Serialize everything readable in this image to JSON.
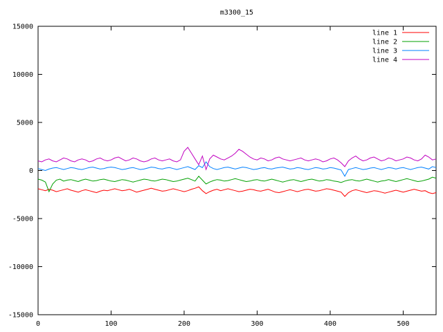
{
  "chart_data": {
    "type": "line",
    "title": "m3300_15",
    "xlabel": "",
    "ylabel": "",
    "xlim": [
      0,
      545
    ],
    "ylim": [
      -15000,
      15000
    ],
    "xticks": [
      0,
      100,
      200,
      300,
      400,
      500
    ],
    "yticks": [
      -15000,
      -10000,
      -5000,
      0,
      5000,
      10000,
      15000
    ],
    "grid": false,
    "legend_position": "top-right",
    "x": [
      0,
      5,
      10,
      15,
      20,
      25,
      30,
      35,
      40,
      45,
      50,
      55,
      60,
      65,
      70,
      75,
      80,
      85,
      90,
      95,
      100,
      105,
      110,
      115,
      120,
      125,
      130,
      135,
      140,
      145,
      150,
      155,
      160,
      165,
      170,
      175,
      180,
      185,
      190,
      195,
      200,
      205,
      210,
      215,
      220,
      225,
      230,
      235,
      240,
      245,
      250,
      255,
      260,
      265,
      270,
      275,
      280,
      285,
      290,
      295,
      300,
      305,
      310,
      315,
      320,
      325,
      330,
      335,
      340,
      345,
      350,
      355,
      360,
      365,
      370,
      375,
      380,
      385,
      390,
      395,
      400,
      405,
      410,
      415,
      420,
      425,
      430,
      435,
      440,
      445,
      450,
      455,
      460,
      465,
      470,
      475,
      480,
      485,
      490,
      495,
      500,
      505,
      510,
      515,
      520,
      525,
      530,
      535,
      540,
      545
    ],
    "series": [
      {
        "name": "line 1",
        "color": "#ff0000",
        "values": [
          -1900,
          -2000,
          -2100,
          -1950,
          -2050,
          -2200,
          -2100,
          -2000,
          -1900,
          -2050,
          -2150,
          -2250,
          -2100,
          -2000,
          -2100,
          -2200,
          -2300,
          -2150,
          -2050,
          -2100,
          -2000,
          -1900,
          -2000,
          -2100,
          -2050,
          -1950,
          -2100,
          -2250,
          -2150,
          -2050,
          -1950,
          -1850,
          -1950,
          -2050,
          -2150,
          -2100,
          -2000,
          -1900,
          -2000,
          -2100,
          -2200,
          -2100,
          -1950,
          -1850,
          -1700,
          -2100,
          -2400,
          -2200,
          -2050,
          -1950,
          -2100,
          -2000,
          -1900,
          -2000,
          -2100,
          -2200,
          -2150,
          -2050,
          -1950,
          -2000,
          -2100,
          -2150,
          -2050,
          -1950,
          -2100,
          -2250,
          -2300,
          -2200,
          -2100,
          -2000,
          -2100,
          -2200,
          -2100,
          -2000,
          -1950,
          -2050,
          -2150,
          -2100,
          -2000,
          -1900,
          -1950,
          -2050,
          -2150,
          -2250,
          -2700,
          -2300,
          -2100,
          -2000,
          -2100,
          -2200,
          -2300,
          -2200,
          -2100,
          -2150,
          -2250,
          -2350,
          -2250,
          -2150,
          -2050,
          -2150,
          -2250,
          -2150,
          -2050,
          -1950,
          -2050,
          -2150,
          -2100,
          -2300,
          -2400,
          -2300
        ]
      },
      {
        "name": "line 2",
        "color": "#00a000",
        "values": [
          -900,
          -1000,
          -1200,
          -2200,
          -1400,
          -1000,
          -900,
          -1100,
          -1000,
          -950,
          -1050,
          -1150,
          -1000,
          -900,
          -1000,
          -1100,
          -1050,
          -950,
          -900,
          -1000,
          -1100,
          -1150,
          -1050,
          -950,
          -1000,
          -1100,
          -1200,
          -1100,
          -1000,
          -900,
          -950,
          -1050,
          -1100,
          -1000,
          -900,
          -950,
          -1050,
          -1150,
          -1100,
          -1000,
          -900,
          -800,
          -950,
          -1100,
          -600,
          -1000,
          -1400,
          -1200,
          -1050,
          -950,
          -1000,
          -1100,
          -1050,
          -950,
          -850,
          -950,
          -1050,
          -1150,
          -1100,
          -1000,
          -950,
          -1050,
          -1100,
          -1000,
          -900,
          -1000,
          -1100,
          -1200,
          -1100,
          -1000,
          -950,
          -1050,
          -1150,
          -1050,
          -950,
          -900,
          -1000,
          -1100,
          -1050,
          -950,
          -1000,
          -1100,
          -1150,
          -1250,
          -1100,
          -1000,
          -950,
          -1050,
          -1100,
          -1000,
          -900,
          -1000,
          -1100,
          -1200,
          -1100,
          -1050,
          -950,
          -1050,
          -1150,
          -1050,
          -950,
          -850,
          -950,
          -1050,
          -1150,
          -1100,
          -1000,
          -900,
          -700,
          -800
        ]
      },
      {
        "name": "line 3",
        "color": "#0080ff",
        "values": [
          200,
          100,
          0,
          150,
          250,
          300,
          200,
          100,
          200,
          300,
          250,
          150,
          100,
          200,
          300,
          350,
          250,
          150,
          200,
          300,
          350,
          300,
          200,
          100,
          150,
          250,
          300,
          200,
          100,
          150,
          250,
          350,
          300,
          200,
          150,
          250,
          300,
          200,
          100,
          200,
          300,
          400,
          250,
          100,
          500,
          300,
          900,
          400,
          200,
          100,
          200,
          300,
          350,
          250,
          150,
          250,
          350,
          300,
          200,
          100,
          150,
          250,
          300,
          200,
          150,
          250,
          300,
          350,
          250,
          150,
          200,
          300,
          250,
          150,
          100,
          200,
          300,
          250,
          150,
          200,
          300,
          250,
          150,
          50,
          -600,
          100,
          200,
          300,
          200,
          100,
          150,
          250,
          300,
          200,
          100,
          200,
          300,
          250,
          150,
          250,
          300,
          200,
          100,
          200,
          300,
          350,
          250,
          150,
          400,
          300
        ]
      },
      {
        "name": "line 4",
        "color": "#c000c0",
        "values": [
          1000,
          900,
          1100,
          1200,
          1000,
          900,
          1100,
          1300,
          1200,
          1000,
          900,
          1100,
          1200,
          1100,
          900,
          1000,
          1200,
          1300,
          1100,
          1000,
          1100,
          1300,
          1400,
          1200,
          1000,
          1100,
          1300,
          1200,
          1000,
          900,
          1000,
          1200,
          1300,
          1100,
          1000,
          1100,
          1200,
          1000,
          900,
          1100,
          2000,
          2400,
          1800,
          1200,
          600,
          1500,
          100,
          1200,
          1600,
          1400,
          1200,
          1100,
          1300,
          1500,
          1800,
          2200,
          2000,
          1700,
          1400,
          1200,
          1100,
          1300,
          1200,
          1000,
          1100,
          1300,
          1400,
          1200,
          1100,
          1000,
          1100,
          1200,
          1300,
          1100,
          1000,
          1100,
          1200,
          1100,
          900,
          1000,
          1200,
          1300,
          1100,
          800,
          400,
          1000,
          1300,
          1500,
          1200,
          1000,
          1100,
          1300,
          1400,
          1200,
          1000,
          1100,
          1300,
          1200,
          1000,
          1100,
          1200,
          1400,
          1300,
          1100,
          1000,
          1200,
          1600,
          1400,
          1100,
          1200
        ]
      }
    ]
  }
}
